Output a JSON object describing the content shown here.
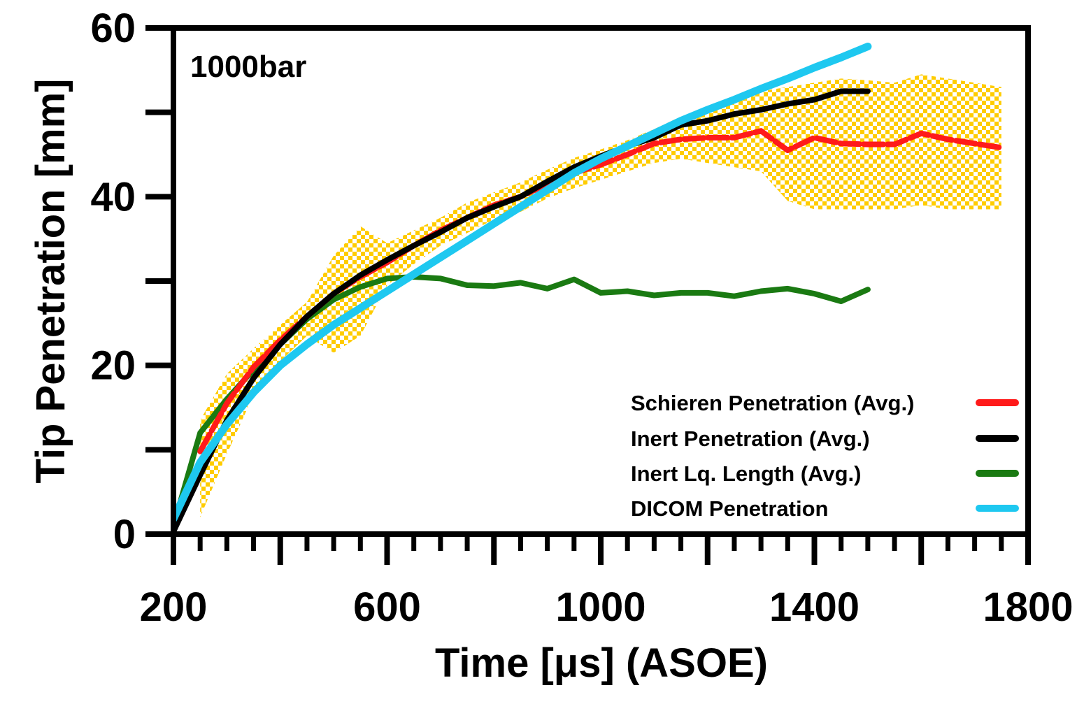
{
  "chart_data": {
    "type": "line",
    "title": "",
    "annotation": "1000bar",
    "xlabel": "Time [μs] (ASOE)",
    "ylabel": "Tip Penetration [mm]",
    "xlim": [
      200,
      1800
    ],
    "ylim": [
      0,
      60
    ],
    "xticks": [
      "200",
      "600",
      "1000",
      "1400",
      "1800"
    ],
    "yticks": [
      "0",
      "20",
      "40",
      "60"
    ],
    "grid": false,
    "legend_position": "bottom-right",
    "series": [
      {
        "name": "Schieren Penetration (Avg.)",
        "color": "#ff1a1a",
        "x": [
          250,
          300,
          350,
          400,
          450,
          500,
          550,
          600,
          650,
          700,
          750,
          800,
          850,
          900,
          950,
          1000,
          1050,
          1100,
          1150,
          1200,
          1250,
          1300,
          1350,
          1400,
          1450,
          1500,
          1550,
          1600,
          1650,
          1700,
          1750
        ],
        "y": [
          9.8,
          15.5,
          19.8,
          23.0,
          25.8,
          28.5,
          30.5,
          32.2,
          34.2,
          36.0,
          37.5,
          39.0,
          40.0,
          41.5,
          42.8,
          43.8,
          45.0,
          46.3,
          46.8,
          47.0,
          47.0,
          47.8,
          45.5,
          47.0,
          46.3,
          46.2,
          46.2,
          47.5,
          46.8,
          46.3,
          45.8
        ]
      },
      {
        "name": "Inert Penetration (Avg.)",
        "color": "#000000",
        "x": [
          200,
          250,
          300,
          350,
          400,
          450,
          500,
          550,
          600,
          650,
          700,
          750,
          800,
          850,
          900,
          950,
          1000,
          1050,
          1100,
          1150,
          1200,
          1250,
          1300,
          1350,
          1400,
          1450,
          1500
        ],
        "y": [
          0.3,
          7.0,
          13.5,
          18.5,
          22.5,
          25.8,
          28.5,
          30.7,
          32.5,
          34.2,
          35.8,
          37.5,
          38.8,
          40.0,
          41.8,
          43.5,
          44.8,
          46.0,
          47.0,
          48.5,
          49.0,
          49.8,
          50.3,
          51.0,
          51.5,
          52.5,
          52.5
        ]
      },
      {
        "name": "Inert Lq. Length (Avg.)",
        "color": "#1a7a12",
        "x": [
          200,
          250,
          300,
          350,
          400,
          450,
          500,
          550,
          600,
          650,
          700,
          750,
          800,
          850,
          900,
          950,
          1000,
          1050,
          1100,
          1150,
          1200,
          1250,
          1300,
          1350,
          1400,
          1450,
          1500
        ],
        "y": [
          1.0,
          12.0,
          16.0,
          19.5,
          22.5,
          25.5,
          27.8,
          29.3,
          30.3,
          30.5,
          30.3,
          29.5,
          29.4,
          29.8,
          29.1,
          30.2,
          28.6,
          28.8,
          28.3,
          28.6,
          28.6,
          28.2,
          28.8,
          29.1,
          28.5,
          27.6,
          29.0
        ]
      },
      {
        "name": "DICOM Penetration",
        "color": "#1ec8f0",
        "x": [
          200,
          250,
          300,
          350,
          400,
          450,
          500,
          550,
          600,
          650,
          700,
          750,
          800,
          850,
          900,
          950,
          1000,
          1050,
          1100,
          1150,
          1200,
          1250,
          1300,
          1350,
          1400,
          1450,
          1500
        ],
        "y": [
          1.8,
          8.5,
          13.0,
          16.8,
          20.0,
          22.5,
          24.8,
          26.8,
          28.8,
          30.8,
          32.8,
          34.8,
          36.8,
          38.8,
          40.8,
          42.8,
          44.5,
          46.0,
          47.5,
          49.0,
          50.3,
          51.5,
          52.8,
          54.0,
          55.3,
          56.5,
          57.8
        ]
      }
    ],
    "error_band": {
      "series": "Schieren Penetration (Avg.)",
      "color": "#ffcc00",
      "x": [
        250,
        300,
        350,
        400,
        450,
        500,
        550,
        600,
        650,
        700,
        750,
        800,
        850,
        900,
        950,
        1000,
        1050,
        1100,
        1150,
        1200,
        1250,
        1300,
        1350,
        1400,
        1450,
        1500,
        1550,
        1600,
        1650,
        1700,
        1750
      ],
      "upper": [
        13.5,
        19.0,
        22.0,
        24.8,
        27.5,
        33.0,
        36.5,
        34.5,
        36.0,
        37.5,
        39.3,
        40.5,
        41.7,
        43.2,
        44.6,
        45.6,
        46.7,
        48.0,
        49.5,
        50.0,
        51.0,
        52.5,
        53.0,
        53.5,
        54.0,
        53.8,
        53.5,
        54.5,
        54.0,
        53.5,
        53.0
      ],
      "lower": [
        2.0,
        9.5,
        16.5,
        20.5,
        23.5,
        21.5,
        23.5,
        29.5,
        32.0,
        34.2,
        35.7,
        37.3,
        38.2,
        39.8,
        41.0,
        42.0,
        43.0,
        44.0,
        44.5,
        44.0,
        43.5,
        43.0,
        39.5,
        38.5,
        38.5,
        38.5,
        38.5,
        39.0,
        38.5,
        38.5,
        38.5
      ]
    }
  }
}
